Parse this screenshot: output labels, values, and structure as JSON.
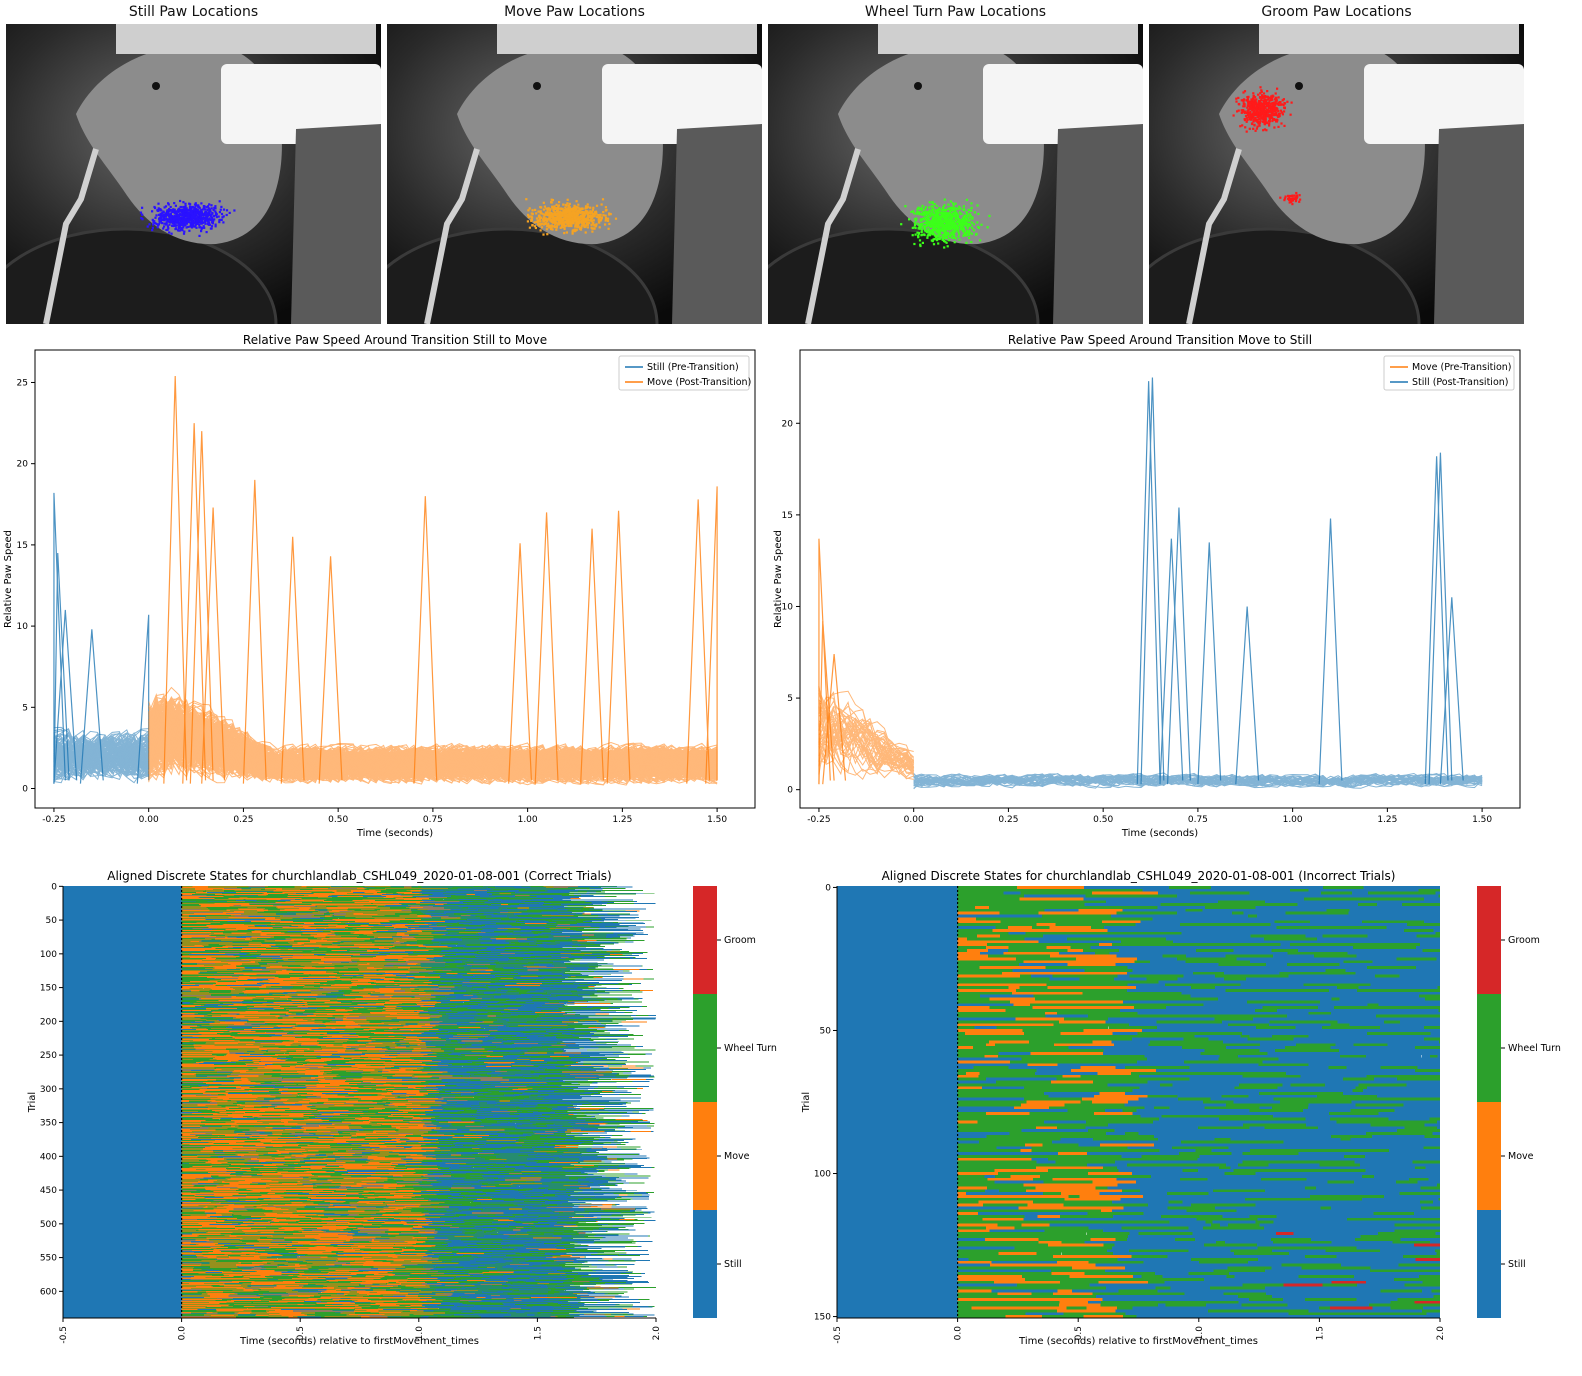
{
  "colors": {
    "still": "#1f77b4",
    "move": "#ff7f0e",
    "wheel_turn": "#2ca02c",
    "groom": "#d62728",
    "scatter_still": "#2a12ff",
    "scatter_move": "#f5a323",
    "scatter_wheel": "#3cff1a",
    "scatter_groom": "#ff1a1a"
  },
  "photos": [
    {
      "title": "Still Paw Locations",
      "color_key": "scatter_still",
      "region": "chest"
    },
    {
      "title": "Move Paw Locations",
      "color_key": "scatter_move",
      "region": "chest"
    },
    {
      "title": "Wheel Turn Paw Locations",
      "color_key": "scatter_wheel",
      "region": "chest_low"
    },
    {
      "title": "Groom Paw Locations",
      "color_key": "scatter_groom",
      "region": "face"
    }
  ],
  "chart_data": [
    {
      "type": "line",
      "title": "Relative Paw Speed Around Transition Still to Move",
      "xlabel": "Time (seconds)",
      "ylabel": "Relative Paw Speed",
      "xlim": [
        -0.3,
        1.6
      ],
      "ylim": [
        -1.2,
        27
      ],
      "xticks": [
        "-0.25",
        "0.00",
        "0.25",
        "0.50",
        "0.75",
        "1.00",
        "1.25",
        "1.50"
      ],
      "xtick_values": [
        -0.25,
        0,
        0.25,
        0.5,
        0.75,
        1.0,
        1.25,
        1.5
      ],
      "yticks": [
        "0",
        "5",
        "10",
        "15",
        "20",
        "25"
      ],
      "ytick_values": [
        0,
        5,
        10,
        15,
        20,
        25
      ],
      "legend": {
        "position": "upper-right",
        "entries": [
          {
            "label": "Still (Pre-Transition)",
            "color_key": "still"
          },
          {
            "label": "Move (Post-Transition)",
            "color_key": "move"
          }
        ]
      },
      "series": [
        {
          "name": "Still (Pre-Transition)",
          "color_key": "still",
          "x_range": [
            -0.25,
            0.0
          ],
          "n_traces": 120,
          "typical_max": 4,
          "peaks": [
            [
              -0.25,
              18.2
            ],
            [
              -0.24,
              14.5
            ],
            [
              -0.22,
              11.0
            ],
            [
              -0.15,
              9.8
            ],
            [
              0.0,
              10.7
            ]
          ]
        },
        {
          "name": "Move (Post-Transition)",
          "color_key": "move",
          "x_range": [
            0.0,
            1.5
          ],
          "n_traces": 260,
          "typical_max": 3,
          "peaks": [
            [
              0.07,
              25.4
            ],
            [
              0.12,
              22.5
            ],
            [
              0.14,
              22.0
            ],
            [
              0.17,
              17.3
            ],
            [
              0.28,
              19.0
            ],
            [
              0.38,
              15.5
            ],
            [
              0.48,
              14.3
            ],
            [
              0.73,
              18.0
            ],
            [
              0.98,
              15.1
            ],
            [
              1.05,
              17.0
            ],
            [
              1.17,
              16.0
            ],
            [
              1.24,
              17.1
            ],
            [
              1.45,
              17.8
            ],
            [
              1.5,
              18.6
            ]
          ]
        }
      ]
    },
    {
      "type": "line",
      "title": "Relative Paw Speed Around Transition Move to Still",
      "xlabel": "Time (seconds)",
      "ylabel": "Relative Paw Speed",
      "xlim": [
        -0.3,
        1.6
      ],
      "ylim": [
        -1.0,
        24
      ],
      "xticks": [
        "-0.25",
        "0.00",
        "0.25",
        "0.50",
        "0.75",
        "1.00",
        "1.25",
        "1.50"
      ],
      "xtick_values": [
        -0.25,
        0,
        0.25,
        0.5,
        0.75,
        1.0,
        1.25,
        1.5
      ],
      "yticks": [
        "0",
        "5",
        "10",
        "15",
        "20"
      ],
      "ytick_values": [
        0,
        5,
        10,
        15,
        20
      ],
      "legend": {
        "position": "upper-right",
        "entries": [
          {
            "label": "Move (Pre-Transition)",
            "color_key": "move"
          },
          {
            "label": "Still (Post-Transition)",
            "color_key": "still"
          }
        ]
      },
      "series": [
        {
          "name": "Move (Pre-Transition)",
          "color_key": "move",
          "x_range": [
            -0.25,
            0.0
          ],
          "n_traces": 40,
          "typical_max": 5,
          "peaks": [
            [
              -0.25,
              13.7
            ],
            [
              -0.24,
              9.2
            ],
            [
              -0.21,
              7.4
            ]
          ]
        },
        {
          "name": "Still (Post-Transition)",
          "color_key": "still",
          "x_range": [
            0.0,
            1.5
          ],
          "n_traces": 30,
          "typical_max": 1,
          "peaks": [
            [
              0.62,
              22.3
            ],
            [
              0.63,
              22.5
            ],
            [
              0.7,
              15.4
            ],
            [
              0.68,
              13.7
            ],
            [
              0.78,
              13.5
            ],
            [
              0.88,
              10.0
            ],
            [
              1.1,
              14.8
            ],
            [
              1.38,
              18.2
            ],
            [
              1.39,
              18.4
            ],
            [
              1.42,
              10.5
            ]
          ]
        }
      ]
    },
    {
      "type": "heatmap",
      "title": "Aligned Discrete States for churchlandlab_CSHL049_2020-01-08-001 (Correct Trials)",
      "xlabel": "Time (seconds) relative to firstMovement_times",
      "ylabel": "Trial",
      "xlim": [
        -0.5,
        2.0
      ],
      "xticks": [
        "-0.5",
        "0.0",
        "0.5",
        "1.0",
        "1.5",
        "2.0"
      ],
      "xtick_values": [
        -0.5,
        0,
        0.5,
        1.0,
        1.5,
        2.0
      ],
      "n_trials": 640,
      "yticks": [
        "0",
        "50",
        "100",
        "150",
        "200",
        "250",
        "300",
        "350",
        "400",
        "450",
        "500",
        "550",
        "600"
      ],
      "ytick_values": [
        0,
        50,
        100,
        150,
        200,
        250,
        300,
        350,
        400,
        450,
        500,
        550,
        600
      ],
      "states": [
        "Still",
        "Move",
        "Wheel Turn",
        "Groom"
      ],
      "colorbar": [
        "Groom",
        "Wheel Turn",
        "Move",
        "Still"
      ],
      "end_range": [
        1.6,
        2.0
      ]
    },
    {
      "type": "heatmap",
      "title": "Aligned Discrete States for churchlandlab_CSHL049_2020-01-08-001 (Incorrect Trials)",
      "xlabel": "Time (seconds) relative to firstMovement_times",
      "ylabel": "Trial",
      "xlim": [
        -0.5,
        2.0
      ],
      "xticks": [
        "-0.5",
        "0.0",
        "0.5",
        "1.0",
        "1.5",
        "2.0"
      ],
      "xtick_values": [
        -0.5,
        0,
        0.5,
        1.0,
        1.5,
        2.0
      ],
      "n_trials": 151,
      "yticks": [
        "0",
        "50",
        "100",
        "150"
      ],
      "ytick_values": [
        0,
        50,
        100,
        150
      ],
      "states": [
        "Still",
        "Move",
        "Wheel Turn",
        "Groom"
      ],
      "colorbar": [
        "Groom",
        "Wheel Turn",
        "Move",
        "Still"
      ],
      "end_range": [
        2.0,
        2.0
      ]
    }
  ]
}
